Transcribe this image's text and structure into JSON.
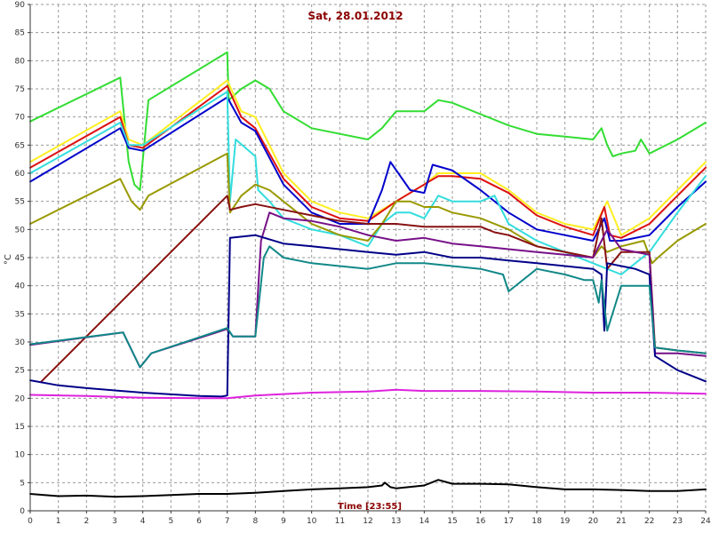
{
  "chart_data": {
    "type": "line",
    "title": "Sat, 28.01.2012",
    "xlabel": "Time [23:55]",
    "ylabel": "°C",
    "xlim": [
      0,
      24
    ],
    "ylim": [
      0,
      90
    ],
    "xticks": [
      0,
      1,
      2,
      3,
      4,
      5,
      6,
      7,
      8,
      9,
      10,
      11,
      12,
      13,
      14,
      15,
      16,
      17,
      18,
      19,
      20,
      21,
      22,
      23,
      24
    ],
    "yticks": [
      0,
      5,
      10,
      15,
      20,
      25,
      30,
      35,
      40,
      45,
      50,
      55,
      60,
      65,
      70,
      75,
      80,
      85,
      90
    ],
    "grid": true,
    "series": [
      {
        "color": "#33dd33",
        "x": [
          0,
          3.2,
          3.5,
          3.7,
          3.9,
          4.2,
          7,
          7.05,
          7.5,
          8,
          8.5,
          9,
          10,
          11,
          12,
          12.5,
          13,
          14,
          14.5,
          15,
          16,
          17,
          18,
          19,
          20,
          20.3,
          20.5,
          20.7,
          21,
          21.5,
          21.7,
          22,
          23,
          24
        ],
        "y": [
          69.2,
          77,
          62,
          58,
          57,
          73,
          81.5,
          73,
          75,
          76.5,
          75,
          71,
          68,
          67,
          66,
          68,
          71,
          71,
          73,
          72.5,
          70.5,
          68.5,
          67,
          66.5,
          66,
          68,
          65,
          63,
          63.5,
          64,
          66,
          63.5,
          66,
          69
        ]
      },
      {
        "color": "#ffee22",
        "x": [
          0,
          3.2,
          3.5,
          4,
          7,
          7.5,
          8,
          9,
          10,
          11,
          12,
          13,
          14,
          14.5,
          15,
          16,
          17,
          18,
          19,
          20,
          20.5,
          21,
          22,
          23,
          24
        ],
        "y": [
          62,
          71,
          66,
          65,
          76.5,
          71,
          70,
          60,
          55,
          53,
          52,
          55,
          58,
          60,
          60,
          60,
          57,
          53,
          51,
          50,
          55,
          49,
          52,
          57,
          62
        ]
      },
      {
        "color": "#dd1111",
        "x": [
          0,
          3.2,
          3.5,
          4,
          7,
          7.5,
          8,
          9,
          10,
          11,
          12,
          13,
          14,
          14.5,
          15,
          16,
          17,
          18,
          19,
          20,
          20.4,
          20.6,
          21,
          22,
          23,
          24
        ],
        "y": [
          61,
          70,
          65,
          64.5,
          75.5,
          70,
          68,
          59,
          54,
          52,
          51.5,
          55,
          58,
          59.5,
          59.5,
          59,
          56.5,
          52.5,
          50.5,
          49,
          54,
          49,
          48.5,
          51,
          56,
          61
        ]
      },
      {
        "color": "#0000cc",
        "x": [
          0,
          3.2,
          3.5,
          4,
          7,
          7.5,
          8,
          9,
          10,
          11,
          12,
          12.5,
          12.8,
          13.5,
          14,
          14.3,
          15,
          16,
          17,
          18,
          19,
          20,
          20.4,
          20.6,
          21,
          22,
          23,
          24
        ],
        "y": [
          58.5,
          68,
          64.5,
          64,
          73.5,
          69,
          67.5,
          58,
          53,
          51,
          51,
          57,
          62,
          57,
          56.5,
          61.5,
          60.5,
          57,
          53,
          50,
          49,
          48,
          52,
          48,
          48,
          49,
          54,
          58.5
        ]
      },
      {
        "color": "#33dddd",
        "x": [
          0,
          3.2,
          3.5,
          4,
          7,
          7.1,
          7.3,
          8,
          8.1,
          8.5,
          9,
          10,
          11,
          12,
          12.5,
          13,
          13.5,
          14,
          14.5,
          15,
          16,
          16.5,
          17,
          18,
          19,
          20,
          20.5,
          21,
          22,
          23,
          24
        ],
        "y": [
          60,
          69,
          65,
          65,
          74.5,
          55,
          66,
          63,
          57,
          55,
          52,
          50,
          49,
          47,
          51,
          53,
          53,
          52,
          56,
          55,
          55,
          56,
          51,
          48,
          46,
          44,
          43,
          42,
          46,
          53,
          59.5
        ]
      },
      {
        "color": "#999900",
        "x": [
          0,
          3.2,
          3.6,
          3.9,
          4.2,
          7,
          7.1,
          7.5,
          8,
          8.5,
          9,
          10,
          11,
          12,
          12.5,
          13,
          13.5,
          14,
          14.5,
          15,
          16,
          17,
          18,
          19,
          20,
          20.3,
          20.5,
          21,
          21.8,
          22.1,
          22.3,
          23,
          24
        ],
        "y": [
          51,
          59,
          55,
          53.5,
          56,
          63.5,
          53,
          56,
          58,
          57,
          55,
          51,
          49,
          48,
          51,
          55,
          55,
          54,
          54,
          53,
          52,
          50,
          47,
          46,
          45,
          47,
          46,
          47,
          48,
          44,
          45,
          48,
          51
        ]
      },
      {
        "color": "#881111",
        "x": [
          0.4,
          7,
          7.1,
          7.5,
          8,
          9,
          10,
          11,
          12,
          13,
          14,
          15,
          16,
          16.5,
          17,
          18,
          19,
          20,
          20.3,
          20.5,
          21,
          22,
          22.2,
          23,
          24
        ],
        "y": [
          23,
          56,
          53.5,
          54,
          54.5,
          53.5,
          52.5,
          51.5,
          51,
          51,
          50.5,
          50.5,
          50.5,
          49.5,
          49,
          47,
          46,
          45,
          52,
          43,
          46,
          46,
          29,
          28.5,
          28
        ]
      },
      {
        "color": "#771188",
        "x": [
          0,
          3.3,
          3.9,
          4.3,
          7,
          7.2,
          7.5,
          8,
          8.2,
          8.5,
          9,
          10,
          11,
          12,
          13,
          14,
          15,
          16,
          17,
          18,
          19,
          20,
          20.5,
          21,
          22,
          22.2,
          23,
          24
        ],
        "y": [
          29.5,
          31.7,
          25.5,
          28,
          32.3,
          31,
          31,
          31,
          48,
          53,
          52,
          51.5,
          50.5,
          49,
          48,
          48.5,
          47.5,
          47,
          46.5,
          46,
          45.5,
          45,
          50,
          46.5,
          45.5,
          28,
          28,
          27.5
        ]
      },
      {
        "color": "#000088",
        "x": [
          0,
          1,
          2,
          3,
          4,
          5,
          6,
          6.8,
          7,
          7.1,
          8,
          9,
          10,
          11,
          12,
          13,
          14,
          15,
          16,
          17,
          18,
          19,
          20,
          20.3,
          20.4,
          20.5,
          21,
          21.5,
          22,
          22.2,
          23,
          24
        ],
        "y": [
          23.2,
          22.3,
          21.8,
          21.4,
          21.0,
          20.7,
          20.4,
          20.3,
          20.5,
          48.5,
          49,
          47.5,
          47,
          46.5,
          46,
          45.5,
          46,
          45,
          45,
          44.5,
          44,
          43.5,
          43,
          42,
          32,
          44,
          43.5,
          43,
          42,
          27.5,
          25,
          23
        ]
      },
      {
        "color": "#118888",
        "x": [
          0,
          3.3,
          3.9,
          4.3,
          7,
          7.2,
          7.5,
          8,
          8.3,
          8.5,
          9,
          10,
          11,
          12,
          13,
          14,
          15,
          16,
          16.8,
          17,
          18,
          19,
          19.7,
          20,
          20.2,
          20.3,
          20.5,
          21,
          21.8,
          22,
          22.2,
          23,
          24
        ],
        "y": [
          29.6,
          31.7,
          25.5,
          28,
          32.5,
          31,
          31,
          31,
          45,
          47,
          45,
          44,
          43.5,
          43,
          44,
          44,
          43.5,
          43,
          42,
          39,
          43,
          42,
          41,
          41,
          37,
          41,
          32,
          40,
          40,
          40,
          29,
          28.5,
          28
        ]
      },
      {
        "color": "#dd22dd",
        "x": [
          0,
          2,
          4,
          6,
          7,
          8,
          10,
          12,
          13,
          14,
          16,
          18,
          20,
          22,
          24
        ],
        "y": [
          20.6,
          20.4,
          20.1,
          20.0,
          20.0,
          20.5,
          21.0,
          21.2,
          21.5,
          21.3,
          21.3,
          21.2,
          21.0,
          21.0,
          20.8
        ]
      },
      {
        "color": "#000000",
        "x": [
          0,
          0.5,
          1,
          2,
          3,
          4,
          5,
          6,
          7,
          8,
          9,
          10,
          11,
          12,
          12.5,
          12.6,
          12.8,
          13,
          14,
          14.5,
          15,
          16,
          17,
          18,
          19,
          20,
          21,
          22,
          23,
          24
        ],
        "y": [
          3.0,
          2.8,
          2.6,
          2.7,
          2.5,
          2.6,
          2.8,
          3.0,
          3.0,
          3.2,
          3.5,
          3.8,
          4.0,
          4.2,
          4.5,
          5.0,
          4.2,
          4.0,
          4.5,
          5.5,
          4.8,
          4.8,
          4.7,
          4.2,
          3.8,
          3.8,
          3.7,
          3.5,
          3.5,
          3.8
        ]
      }
    ]
  }
}
